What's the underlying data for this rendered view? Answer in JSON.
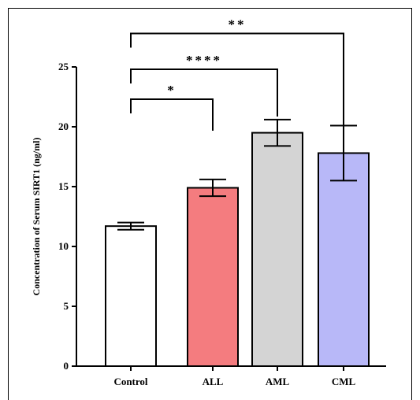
{
  "chart_data": {
    "type": "bar",
    "title": "",
    "xlabel": "",
    "ylabel": "Concentration of Serum SIRT1 (ng/ml)",
    "ylim": [
      0,
      25
    ],
    "yticks": [
      0,
      5,
      10,
      15,
      20,
      25
    ],
    "grid": false,
    "categories": [
      "Control",
      "ALL",
      "AML",
      "CML"
    ],
    "values": [
      11.7,
      14.9,
      19.5,
      17.8
    ],
    "errors": [
      0.3,
      0.7,
      1.1,
      2.3
    ],
    "colors": [
      "#ffffff",
      "#f47c7f",
      "#d4d4d4",
      "#b8b8f8"
    ],
    "significance": [
      {
        "from": "Control",
        "to": "ALL",
        "label": "*",
        "level": 22.3
      },
      {
        "from": "Control",
        "to": "AML",
        "label": "****",
        "level": 24.8
      },
      {
        "from": "Control",
        "to": "CML",
        "label": "**",
        "level": 27.8
      }
    ]
  }
}
